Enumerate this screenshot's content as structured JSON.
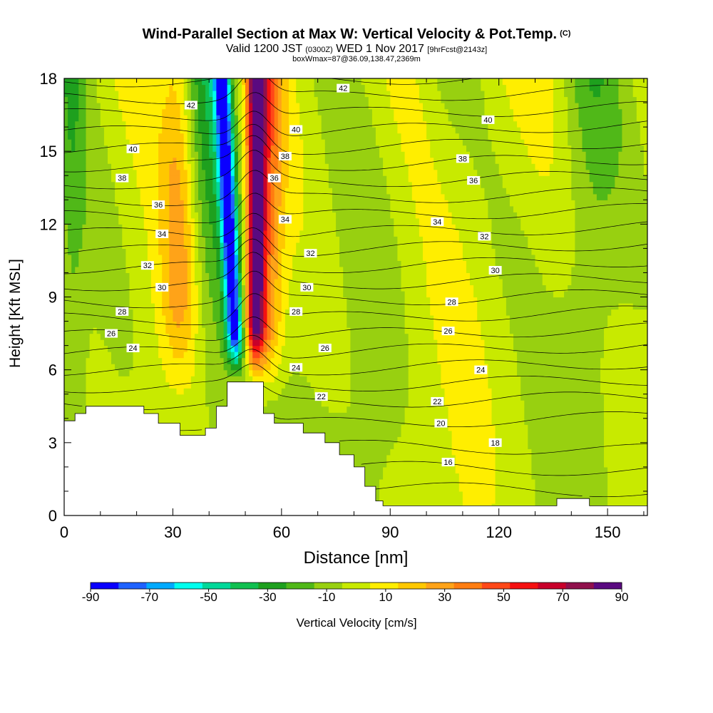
{
  "title": "Wind-Parallel Section at Max W: Vertical Velocity & Pot.Temp.",
  "copyright": "(C)",
  "subtitle_valid": "Valid 1200 JST",
  "subtitle_utc": "(0300Z)",
  "subtitle_date": "WED 1 Nov 2017",
  "subtitle_fcst": "[9hrFcst@2143z]",
  "subtitle2": "boxWmax=87@36.09,138.47,2369m",
  "chart_data": {
    "type": "heatmap",
    "title": "Wind-Parallel Section at Max W: Vertical Velocity & Pot.Temp.",
    "xlabel": "Distance [nm]",
    "ylabel": "Height [Kft MSL]",
    "xlim": [
      0,
      161
    ],
    "ylim": [
      0,
      18
    ],
    "x_ticks": [
      0,
      30,
      60,
      90,
      120,
      150
    ],
    "y_ticks": [
      0,
      3,
      6,
      9,
      12,
      15,
      18
    ],
    "colorbar": {
      "label": "Vertical Velocity [cm/s]",
      "tick_labels": [
        "-90",
        "-70",
        "-50",
        "-30",
        "-10",
        "10",
        "30",
        "50",
        "70",
        "90"
      ],
      "levels": [
        -90,
        -80,
        -70,
        -60,
        -50,
        -40,
        -30,
        -20,
        -10,
        0,
        10,
        20,
        30,
        40,
        50,
        60,
        70,
        80,
        90
      ],
      "colors": [
        "#0a00ff",
        "#1e62ff",
        "#00aaff",
        "#00ffee",
        "#00d899",
        "#10c050",
        "#1ea01e",
        "#50b818",
        "#98d010",
        "#c8ea00",
        "#ffee00",
        "#ffc800",
        "#ffa318",
        "#ff7d10",
        "#ff4818",
        "#f51010",
        "#c8002a",
        "#90104c",
        "#5a0a80"
      ]
    },
    "updraft_core": {
      "x_base": 52,
      "x_top": 52.5,
      "max_w_cm_s": 87
    },
    "downdraft_core": {
      "x_base": 51,
      "x_top": 45,
      "min_w_cm_s": -90
    },
    "terrain_kft": [
      {
        "x": 0,
        "h": 3.9
      },
      {
        "x": 3,
        "h": 4.2
      },
      {
        "x": 6,
        "h": 4.5
      },
      {
        "x": 22,
        "h": 4.2
      },
      {
        "x": 26,
        "h": 3.8
      },
      {
        "x": 32,
        "h": 3.3
      },
      {
        "x": 39,
        "h": 3.6
      },
      {
        "x": 42,
        "h": 4.5
      },
      {
        "x": 45,
        "h": 5.5
      },
      {
        "x": 55,
        "h": 4.2
      },
      {
        "x": 58,
        "h": 3.8
      },
      {
        "x": 66,
        "h": 3.4
      },
      {
        "x": 72,
        "h": 3.0
      },
      {
        "x": 76,
        "h": 2.5
      },
      {
        "x": 80,
        "h": 2.0
      },
      {
        "x": 83,
        "h": 1.2
      },
      {
        "x": 86,
        "h": 0.6
      },
      {
        "x": 88,
        "h": 0.4
      },
      {
        "x": 136,
        "h": 0.7
      },
      {
        "x": 145,
        "h": 0.4
      },
      {
        "x": 161,
        "h": 0.4
      }
    ],
    "potential_temperature_contours": [
      {
        "label": "16",
        "positions": [
          {
            "x": 106,
            "h": 2.2
          }
        ]
      },
      {
        "label": "18",
        "positions": [
          {
            "x": 119,
            "h": 3.0
          }
        ]
      },
      {
        "label": "20",
        "positions": [
          {
            "x": 104,
            "h": 3.8
          }
        ]
      },
      {
        "label": "22",
        "positions": [
          {
            "x": 71,
            "h": 4.9
          },
          {
            "x": 103,
            "h": 4.7
          }
        ]
      },
      {
        "label": "24",
        "positions": [
          {
            "x": 19,
            "h": 6.9
          },
          {
            "x": 64,
            "h": 6.1
          },
          {
            "x": 115,
            "h": 6.0
          }
        ]
      },
      {
        "label": "26",
        "positions": [
          {
            "x": 13,
            "h": 7.5
          },
          {
            "x": 72,
            "h": 6.9
          },
          {
            "x": 106,
            "h": 7.6
          }
        ]
      },
      {
        "label": "28",
        "positions": [
          {
            "x": 16,
            "h": 8.4
          },
          {
            "x": 64,
            "h": 8.4
          },
          {
            "x": 107,
            "h": 8.8
          }
        ]
      },
      {
        "label": "30",
        "positions": [
          {
            "x": 27,
            "h": 9.4
          },
          {
            "x": 67,
            "h": 9.4
          },
          {
            "x": 119,
            "h": 10.1
          }
        ]
      },
      {
        "label": "32",
        "positions": [
          {
            "x": 23,
            "h": 10.3
          },
          {
            "x": 68,
            "h": 10.8
          },
          {
            "x": 116,
            "h": 11.5
          }
        ]
      },
      {
        "label": "34",
        "positions": [
          {
            "x": 27,
            "h": 11.6
          },
          {
            "x": 61,
            "h": 12.2
          },
          {
            "x": 103,
            "h": 12.1
          }
        ]
      },
      {
        "label": "36",
        "positions": [
          {
            "x": 26,
            "h": 12.8
          },
          {
            "x": 58,
            "h": 13.9
          },
          {
            "x": 113,
            "h": 13.8
          }
        ]
      },
      {
        "label": "38",
        "positions": [
          {
            "x": 16,
            "h": 13.9
          },
          {
            "x": 61,
            "h": 14.8
          },
          {
            "x": 110,
            "h": 14.7
          }
        ]
      },
      {
        "label": "40",
        "positions": [
          {
            "x": 19,
            "h": 15.1
          },
          {
            "x": 64,
            "h": 15.9
          },
          {
            "x": 117,
            "h": 16.3
          }
        ]
      },
      {
        "label": "42",
        "positions": [
          {
            "x": 35,
            "h": 16.9
          },
          {
            "x": 77,
            "h": 17.6
          }
        ]
      }
    ]
  }
}
